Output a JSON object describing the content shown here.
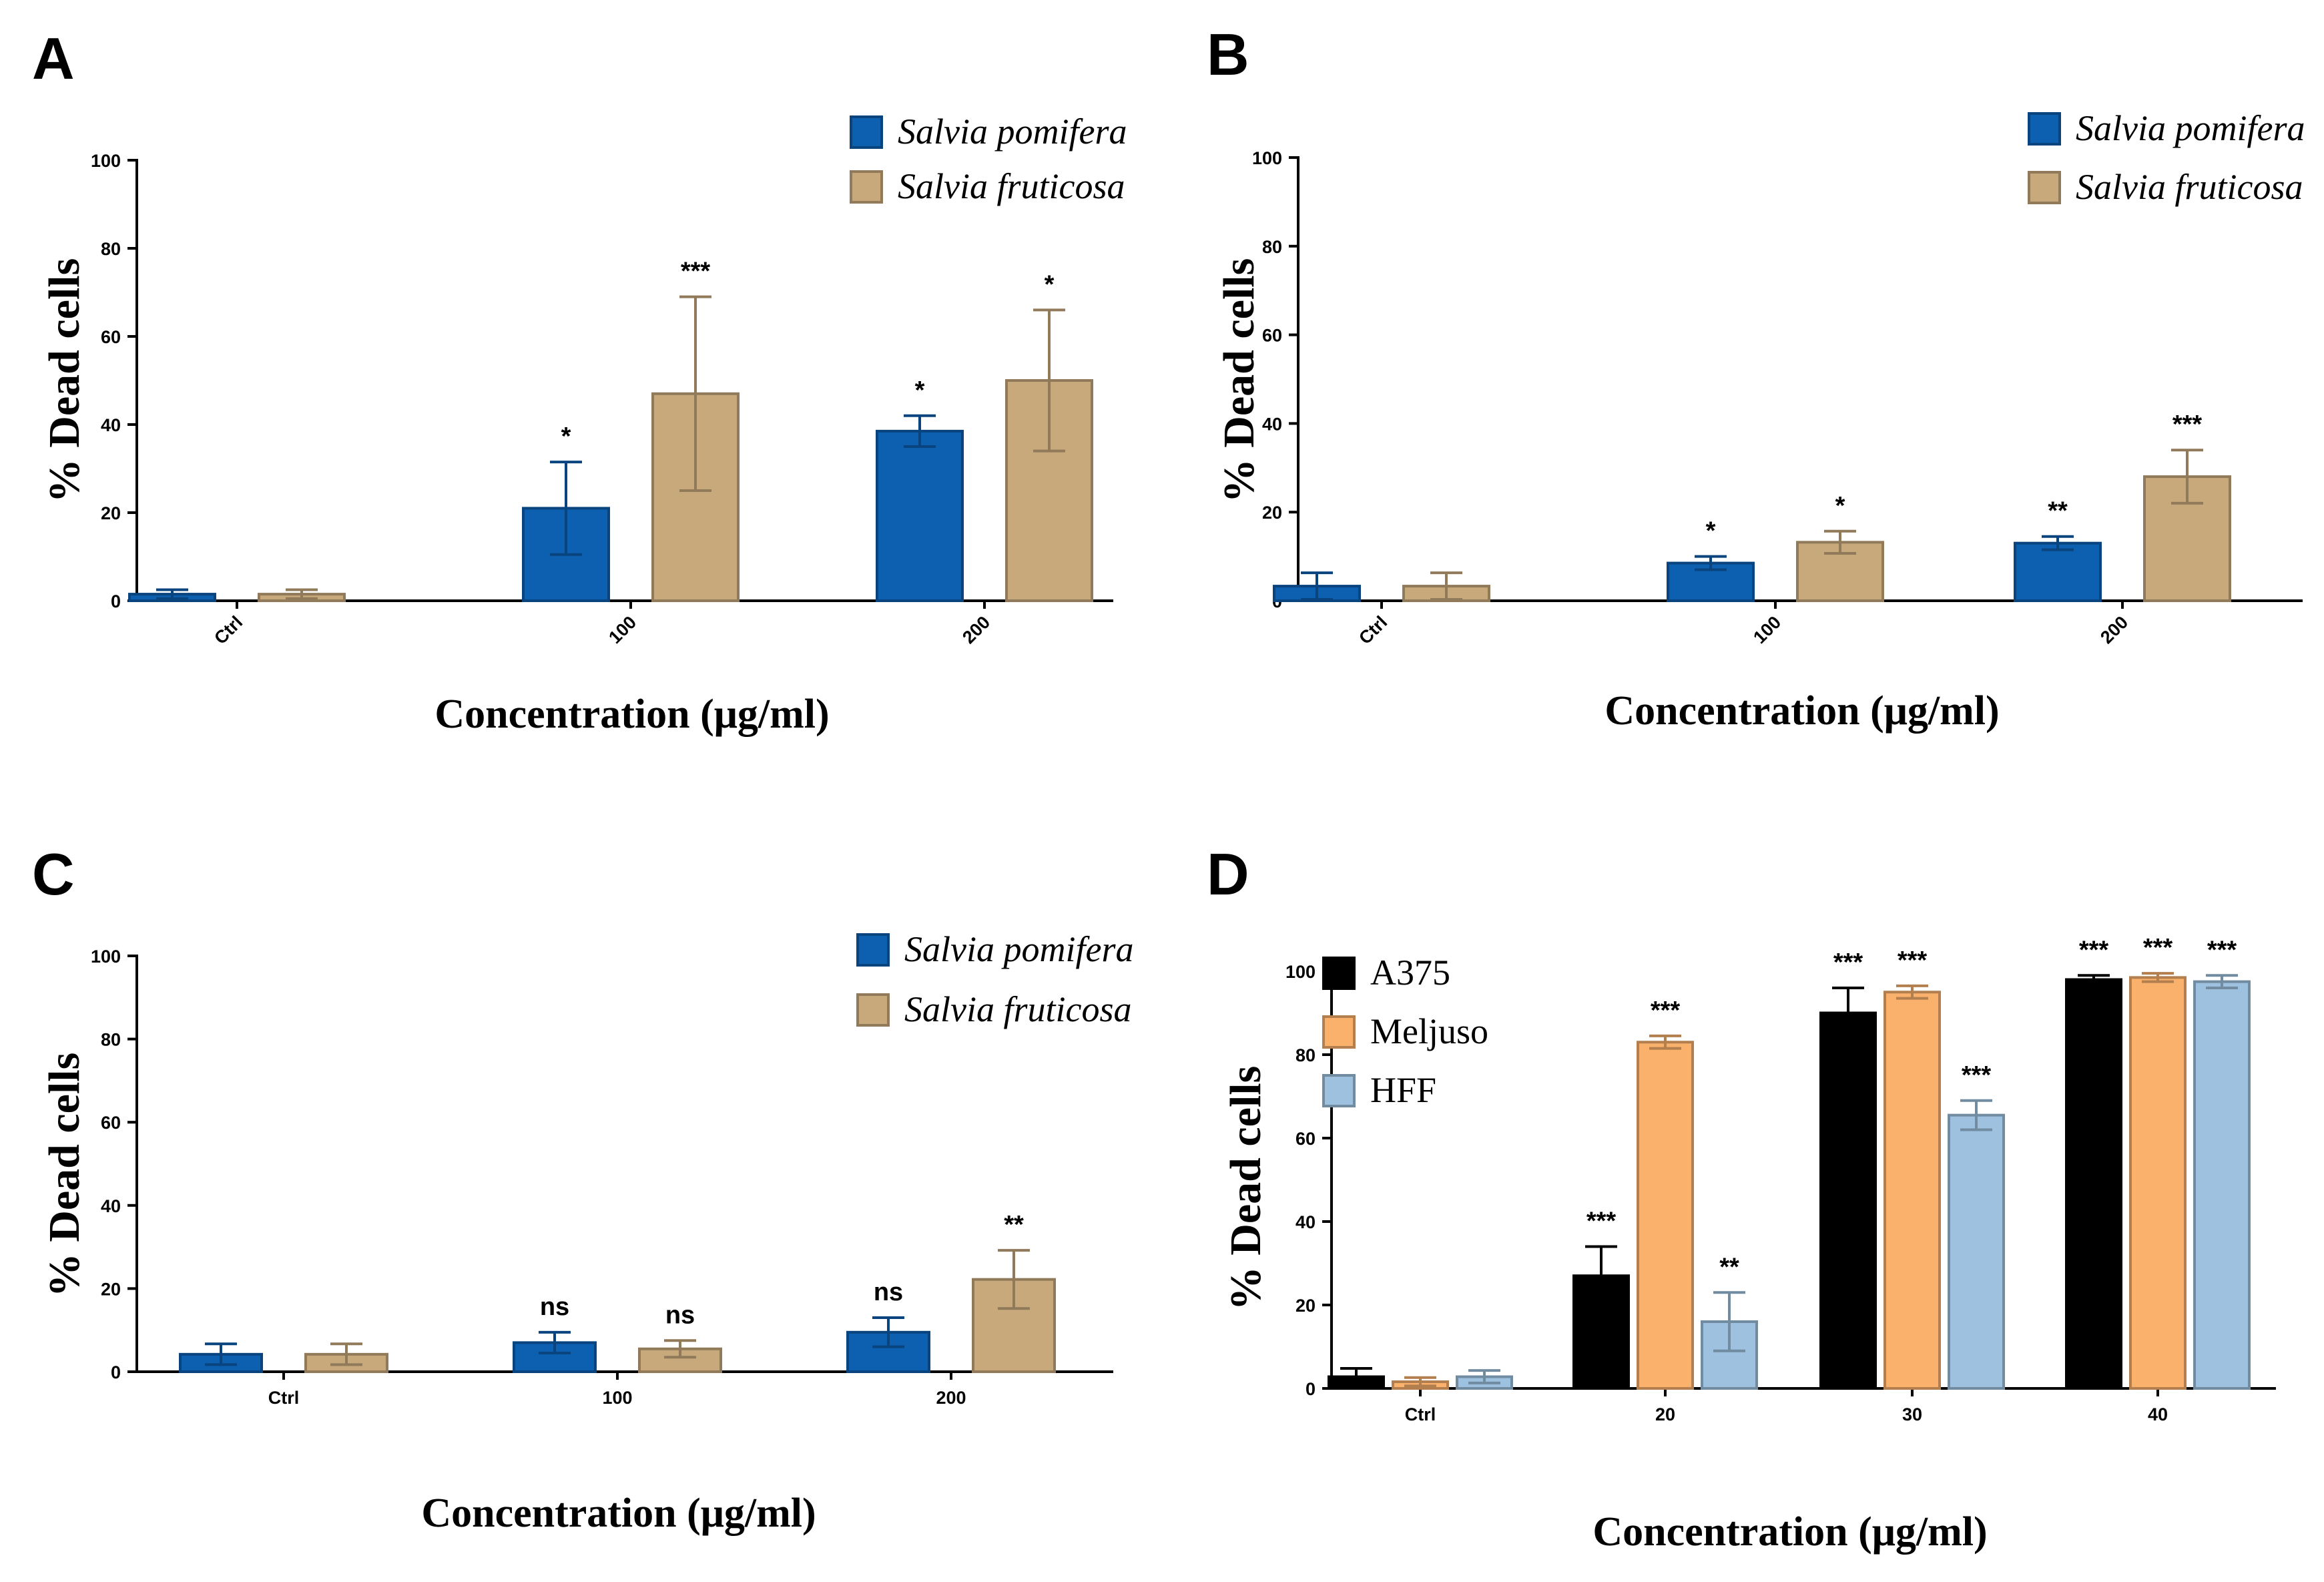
{
  "colors": {
    "salvia_pomifera": "#0d5fb0",
    "salvia_fruticosa": "#c8a97c",
    "a375": "#000000",
    "meljuso": "#f9b16c",
    "hff": "#9dc1df"
  },
  "chart_data": [
    {
      "panel": "A",
      "type": "bar",
      "ylabel": "% Dead cells",
      "xlabel": "Concentration (μg/ml)",
      "ylim": [
        0,
        100
      ],
      "yticks": [
        "0",
        "20",
        "40",
        "60",
        "80",
        "100"
      ],
      "categories": [
        "Ctrl",
        "100",
        "200"
      ],
      "rotate_ticks": true,
      "series": [
        {
          "name": "Salvia pomifera",
          "values": [
            1.5,
            21,
            38.5
          ],
          "errors": [
            1,
            10.5,
            3.5
          ],
          "sig": [
            "",
            "*",
            "*"
          ]
        },
        {
          "name": "Salvia fruticosa",
          "values": [
            1.5,
            47,
            50
          ],
          "errors": [
            1,
            22,
            16
          ],
          "sig": [
            "",
            "***",
            "*"
          ]
        }
      ]
    },
    {
      "panel": "B",
      "type": "bar",
      "ylabel": "% Dead cells",
      "xlabel": "Concentration (μg/ml)",
      "ylim": [
        0,
        100
      ],
      "yticks": [
        "0",
        "20",
        "40",
        "60",
        "80",
        "100"
      ],
      "categories": [
        "Ctrl",
        "100",
        "200"
      ],
      "rotate_ticks": true,
      "series": [
        {
          "name": "Salvia pomifera",
          "values": [
            3.3,
            8.5,
            13
          ],
          "errors": [
            3,
            1.5,
            1.5
          ],
          "sig": [
            "",
            "*",
            "**"
          ]
        },
        {
          "name": "Salvia fruticosa",
          "values": [
            3.3,
            13.2,
            28
          ],
          "errors": [
            3,
            2.5,
            6
          ],
          "sig": [
            "",
            "*",
            "***"
          ]
        }
      ]
    },
    {
      "panel": "C",
      "type": "bar",
      "ylabel": "% Dead cells",
      "xlabel": "Concentration (μg/ml)",
      "ylim": [
        0,
        100
      ],
      "yticks": [
        "0",
        "20",
        "40",
        "60",
        "80",
        "100"
      ],
      "categories": [
        "Ctrl",
        "100",
        "200"
      ],
      "rotate_ticks": false,
      "series": [
        {
          "name": "Salvia pomifera",
          "values": [
            4.2,
            7,
            9.5
          ],
          "errors": [
            2.5,
            2.5,
            3.5
          ],
          "sig": [
            "",
            "ns",
            "ns"
          ]
        },
        {
          "name": "Salvia fruticosa",
          "values": [
            4.2,
            5.5,
            22.2
          ],
          "errors": [
            2.5,
            2,
            7
          ],
          "sig": [
            "",
            "ns",
            "**"
          ]
        }
      ]
    },
    {
      "panel": "D",
      "type": "bar",
      "ylabel": "% Dead cells",
      "xlabel": "Concentration (μg/ml)",
      "ylim": [
        0,
        100
      ],
      "yticks": [
        "0",
        "20",
        "40",
        "60",
        "80",
        "100"
      ],
      "categories": [
        "Ctrl",
        "20",
        "30",
        "40"
      ],
      "rotate_ticks": false,
      "series": [
        {
          "name": "A375",
          "values": [
            2.8,
            27,
            90,
            98
          ],
          "errors": [
            2,
            7,
            6,
            1
          ],
          "sig": [
            "",
            "***",
            "***",
            "***"
          ]
        },
        {
          "name": "Meljuso",
          "values": [
            1.6,
            83,
            95,
            98.5
          ],
          "errors": [
            1,
            1.5,
            1.5,
            1
          ],
          "sig": [
            "",
            "***",
            "***",
            "***"
          ]
        },
        {
          "name": "HFF",
          "values": [
            2.8,
            16,
            65.5,
            97.5
          ],
          "errors": [
            1.5,
            7,
            3.5,
            1.5
          ],
          "sig": [
            "",
            "**",
            "***",
            "***"
          ]
        }
      ]
    }
  ]
}
